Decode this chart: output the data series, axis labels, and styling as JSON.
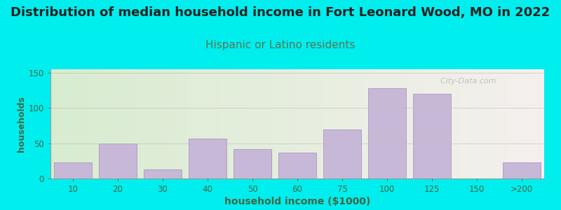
{
  "title": "Distribution of median household income in Fort Leonard Wood, MO in 2022",
  "subtitle": "Hispanic or Latino residents",
  "xlabel": "household income ($1000)",
  "ylabel": "households",
  "bar_labels": [
    "10",
    "20",
    "30",
    "40",
    "50",
    "60",
    "75",
    "100",
    "125",
    "150",
    ">200"
  ],
  "bar_values": [
    23,
    50,
    13,
    57,
    42,
    37,
    70,
    128,
    120,
    0,
    23
  ],
  "bar_color": "#c8b8d8",
  "bar_edgecolor": "#a898c0",
  "yticks": [
    0,
    50,
    100,
    150
  ],
  "ylim": [
    0,
    155
  ],
  "bg_outer": "#00eeee",
  "bg_plot_topleft": "#d8ecd0",
  "bg_plot_bottomright": "#f5f0ee",
  "title_fontsize": 13,
  "subtitle_fontsize": 11,
  "subtitle_color": "#557755",
  "watermark_text": "  City-Data.com",
  "watermark_color": "#b8b8b8",
  "axis_label_color": "#446644",
  "tick_color": "#446644"
}
